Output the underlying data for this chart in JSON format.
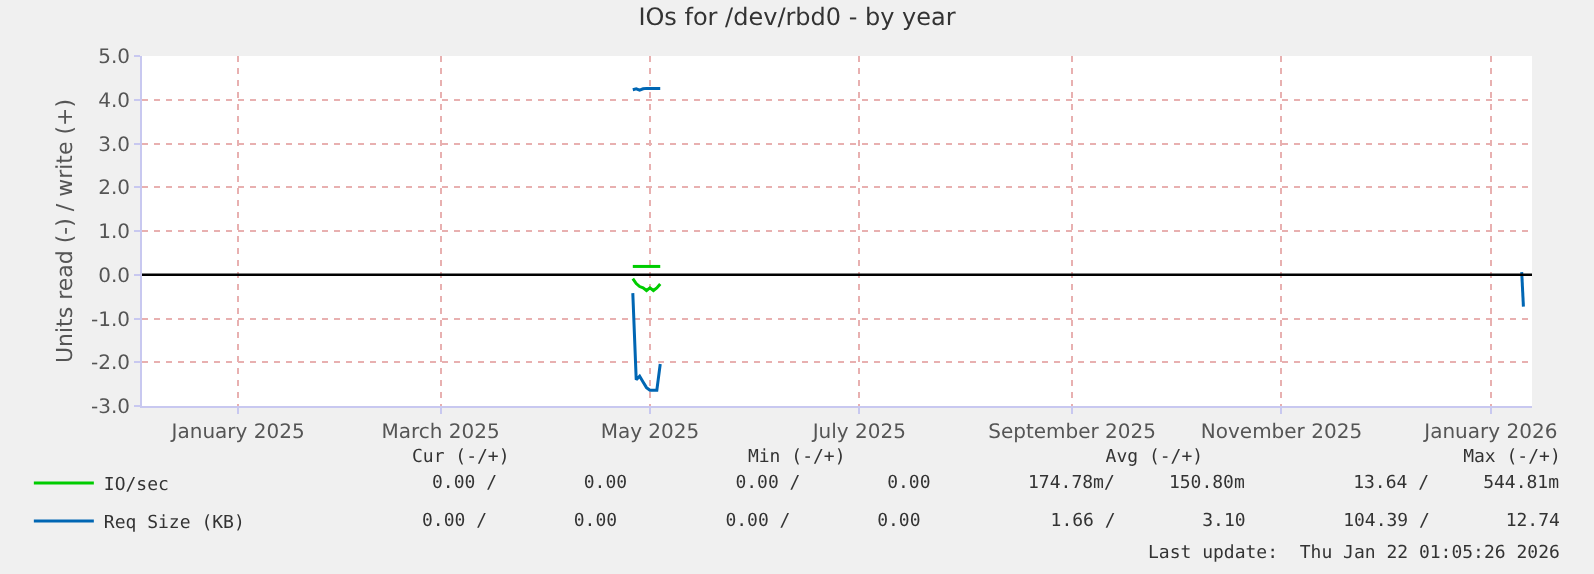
{
  "chart_data": {
    "type": "line",
    "title": "IOs for /dev/rbd0 - by year",
    "ylabel": "Units read (-) / write (+)",
    "xlim": [
      "2024-12-18",
      "2026-01-27"
    ],
    "xticks": [
      {
        "value": "2025-01-15",
        "label": "January 2025"
      },
      {
        "value": "2025-03-15",
        "label": "March 2025"
      },
      {
        "value": "2025-05-15",
        "label": "May 2025"
      },
      {
        "value": "2025-07-15",
        "label": "July 2025"
      },
      {
        "value": "2025-09-15",
        "label": "September 2025"
      },
      {
        "value": "2025-11-15",
        "label": "November 2025"
      },
      {
        "value": "2026-01-15",
        "label": "January 2026"
      }
    ],
    "ylim": [
      -3,
      5
    ],
    "yticks": [
      {
        "value": -3,
        "label": "-3.0"
      },
      {
        "value": -2,
        "label": "-2.0"
      },
      {
        "value": -1,
        "label": "-1.0"
      },
      {
        "value": 0,
        "label": "0.0"
      },
      {
        "value": 1,
        "label": "1.0"
      },
      {
        "value": 2,
        "label": "2.0"
      },
      {
        "value": 3,
        "label": "3.0"
      },
      {
        "value": 4,
        "label": "4.0"
      },
      {
        "value": 5,
        "label": "5.0"
      }
    ],
    "grid": true,
    "legend": "bottom left",
    "marker": "none",
    "line_style": "solid",
    "ref_lines": [
      {
        "axis": "y",
        "value": 0,
        "color": "#000000"
      }
    ],
    "series": [
      {
        "name": "IO/sec",
        "color": "#00cc00",
        "x": [
          "2025-05-10",
          "2025-05-18"
        ],
        "values": [
          0.19,
          0.19
        ]
      },
      {
        "color": "#00cc00",
        "x": [
          "2025-05-10",
          "2025-05-11",
          "2025-05-12",
          "2025-05-13",
          "2025-05-14",
          "2025-05-15",
          "2025-05-16",
          "2025-05-17",
          "2025-05-18"
        ],
        "values": [
          -0.09,
          -0.2,
          -0.27,
          -0.3,
          -0.36,
          -0.3,
          -0.36,
          -0.3,
          -0.21
        ]
      },
      {
        "name": "Req Size (KB)",
        "color": "#0066b3",
        "x": [
          "2025-05-10",
          "2025-05-11",
          "2025-05-12",
          "2025-05-13",
          "2025-05-14",
          "2025-05-15",
          "2025-05-16",
          "2025-05-17",
          "2025-05-18"
        ],
        "values": [
          4.23,
          4.25,
          4.22,
          4.25,
          4.26,
          4.26,
          4.26,
          4.26,
          4.26
        ]
      },
      {
        "color": "#0066b3",
        "x": [
          "2025-05-10",
          "2025-05-11",
          "2025-05-12",
          "2025-05-13",
          "2025-05-14",
          "2025-05-15",
          "2025-05-16",
          "2025-05-17",
          "2025-05-18",
          "2025-05-19",
          "2026-01-24",
          "2026-01-24T12:00"
        ],
        "values": [
          -0.42,
          -2.4,
          -2.32,
          -2.45,
          -2.58,
          -2.64,
          -2.64,
          -2.64,
          -2.04,
          null,
          0.06,
          -0.73
        ]
      }
    ],
    "annotations": [
      "Cur (-/+)                      Min (-/+)                        Avg (-/+)                        Max (-/+)",
      "0.00 /        0.00          0.00 /        0.00         174.78m/     150.80m          13.64 /     544.81m",
      "0.00 /        0.00          0.00 /        0.00            1.66 /        3.10         104.39 /       12.74",
      "Last update:  Thu Jan 22 01:05:26 2026"
    ]
  }
}
